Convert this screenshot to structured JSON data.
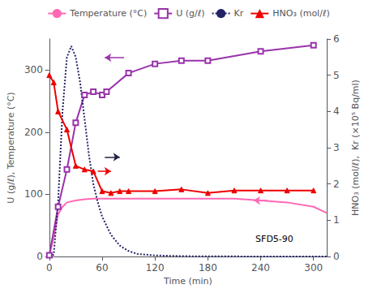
{
  "chart_data": {
    "type": "line",
    "xlabel": "Time (min)",
    "ylabel": "U (g/ℓ), Temperature (°C)",
    "y2label": "HNO₃ (mol/ℓ),  Kr (×10⁵ Bq/ml)",
    "annotation": "SFD5-90",
    "xlim": [
      0,
      315
    ],
    "xticks": [
      0,
      60,
      120,
      180,
      240,
      300
    ],
    "ylim": [
      0,
      350
    ],
    "yticks": [
      0,
      100,
      200,
      300
    ],
    "y2lim": [
      0,
      6
    ],
    "y2ticks": [
      0,
      1,
      2,
      3,
      4,
      5,
      6
    ],
    "grid": false,
    "legend": "top",
    "series": [
      {
        "name": "Temperature (°C)",
        "color": "#ff69b4",
        "axis": "y",
        "marker": "none",
        "line_style": "solid",
        "x": [
          0,
          5,
          10,
          15,
          20,
          30,
          40,
          50,
          60,
          70,
          80,
          90,
          120,
          150,
          180,
          210,
          240,
          270,
          300,
          315
        ],
        "values": [
          2,
          30,
          68,
          80,
          87,
          90,
          92,
          93,
          93,
          93,
          93,
          93,
          93,
          93,
          93,
          93,
          90,
          87,
          80,
          70
        ]
      },
      {
        "name": "U (g/ℓ)",
        "color": "#9933aa",
        "axis": "y",
        "marker": "open_square",
        "line_style": "solid",
        "x": [
          0,
          10,
          20,
          30,
          40,
          50,
          60,
          65,
          90,
          120,
          150,
          180,
          240,
          300
        ],
        "values": [
          2,
          80,
          140,
          215,
          260,
          265,
          260,
          265,
          295,
          310,
          315,
          315,
          330,
          340
        ]
      },
      {
        "name": "Kr",
        "color": "#222266",
        "axis": "y2",
        "marker": "none",
        "line_style": "dotted",
        "x": [
          0,
          5,
          10,
          15,
          20,
          25,
          30,
          35,
          40,
          45,
          50,
          55,
          60,
          70,
          80,
          90,
          100,
          120,
          150,
          180,
          210,
          240,
          270,
          300,
          315
        ],
        "values": [
          0,
          0.05,
          1.5,
          4.0,
          5.5,
          5.8,
          5.5,
          4.8,
          3.8,
          2.8,
          2.0,
          1.5,
          1.1,
          0.6,
          0.3,
          0.15,
          0.07,
          0.03,
          0.01,
          0.005,
          0.003,
          0.002,
          0.001,
          0.0005,
          0.0002
        ]
      },
      {
        "name": "HNO₃ (mol/ℓ)",
        "color": "#ee0000",
        "axis": "y2",
        "marker": "triangle",
        "line_style": "solid",
        "x": [
          0,
          5,
          10,
          20,
          30,
          40,
          50,
          60,
          70,
          80,
          90,
          120,
          150,
          180,
          210,
          240,
          270,
          300
        ],
        "values": [
          5.0,
          4.8,
          4.0,
          3.5,
          2.5,
          2.4,
          2.35,
          1.8,
          1.75,
          1.8,
          1.8,
          1.8,
          1.85,
          1.75,
          1.82,
          1.82,
          1.82,
          1.82
        ]
      }
    ],
    "arrows": [
      {
        "x": [
          63,
          80
        ],
        "y": 160,
        "axis": "y",
        "color": "#222244"
      },
      {
        "x": [
          55,
          70
        ],
        "y": 2.35,
        "axis": "y2",
        "color": "#ee0000"
      },
      {
        "x": [
          248,
          232
        ],
        "y": 90,
        "axis": "y",
        "color": "#ff69b4"
      },
      {
        "x": [
          85,
          63
        ],
        "y": 320,
        "axis": "y",
        "color": "#9933aa"
      }
    ]
  }
}
